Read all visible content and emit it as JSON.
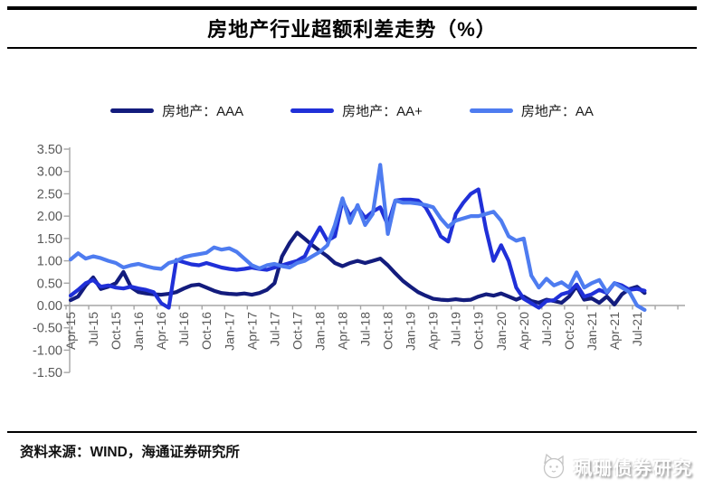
{
  "header": {
    "title": "房地产行业超额利差走势（%）"
  },
  "legend": [
    {
      "label": "房地产：AAA",
      "color": "#131c7d"
    },
    {
      "label": "房地产：AA+",
      "color": "#2030d8"
    },
    {
      "label": "房地产：AA",
      "color": "#4e7cf0"
    }
  ],
  "footer": {
    "source": "资料来源：WIND，海通证券研究所",
    "watermark": "珮珊债券研究"
  },
  "chart_data": {
    "type": "line",
    "title": "房地产行业超额利差走势（%）",
    "xlabel": "",
    "ylabel": "",
    "ylim": [
      -1.5,
      3.5
    ],
    "ytick_step": 0.5,
    "grid": false,
    "legend_position": "top",
    "axis_color": "#a6a6a6",
    "tick_label_color": "#595959",
    "y_tick_labels": [
      "3.50",
      "3.00",
      "2.50",
      "2.00",
      "1.50",
      "1.00",
      "0.50",
      "0.00",
      "-0.50",
      "-1.00",
      "-1.50"
    ],
    "x_tick_labels": [
      "Apr-15",
      "Jul-15",
      "Oct-15",
      "Jan-16",
      "Apr-16",
      "Jul-16",
      "Oct-16",
      "Jan-17",
      "Apr-17",
      "Jul-17",
      "Oct-17",
      "Jan-18",
      "Apr-18",
      "Jul-18",
      "Oct-18",
      "Jan-19",
      "Apr-19",
      "Jul-19",
      "Oct-19",
      "Jan-20",
      "Apr-20",
      "Jul-20",
      "Oct-20",
      "Jan-21",
      "Apr-21",
      "Jul-21"
    ],
    "x": [
      "Apr-15",
      "May-15",
      "Jun-15",
      "Jul-15",
      "Aug-15",
      "Sep-15",
      "Oct-15",
      "Nov-15",
      "Dec-15",
      "Jan-16",
      "Feb-16",
      "Mar-16",
      "Apr-16",
      "May-16",
      "Jun-16",
      "Jul-16",
      "Aug-16",
      "Sep-16",
      "Oct-16",
      "Nov-16",
      "Dec-16",
      "Jan-17",
      "Feb-17",
      "Mar-17",
      "Apr-17",
      "May-17",
      "Jun-17",
      "Jul-17",
      "Aug-17",
      "Sep-17",
      "Oct-17",
      "Nov-17",
      "Dec-17",
      "Jan-18",
      "Feb-18",
      "Mar-18",
      "Apr-18",
      "May-18",
      "Jun-18",
      "Jul-18",
      "Aug-18",
      "Sep-18",
      "Oct-18",
      "Nov-18",
      "Dec-18",
      "Jan-19",
      "Feb-19",
      "Mar-19",
      "Apr-19",
      "May-19",
      "Jun-19",
      "Jul-19",
      "Aug-19",
      "Sep-19",
      "Oct-19",
      "Nov-19",
      "Dec-19",
      "Jan-20",
      "Feb-20",
      "Mar-20",
      "Apr-20",
      "May-20",
      "Jun-20",
      "Jul-20",
      "Aug-20",
      "Sep-20",
      "Oct-20",
      "Nov-20",
      "Dec-20",
      "Jan-21",
      "Feb-21",
      "Mar-21",
      "Apr-21",
      "May-21",
      "Jun-21",
      "Jul-21",
      "Aug-21"
    ],
    "series": [
      {
        "name": "房地产：AAA",
        "color": "#131c7d",
        "values": [
          0.12,
          0.2,
          0.45,
          0.63,
          0.37,
          0.42,
          0.5,
          0.75,
          0.41,
          0.3,
          0.27,
          0.25,
          0.24,
          0.26,
          0.3,
          0.38,
          0.45,
          0.47,
          0.4,
          0.33,
          0.28,
          0.26,
          0.25,
          0.27,
          0.24,
          0.28,
          0.35,
          0.5,
          1.1,
          1.4,
          1.63,
          1.49,
          1.35,
          1.22,
          1.1,
          0.95,
          0.88,
          0.95,
          1.0,
          0.95,
          1.0,
          1.05,
          0.9,
          0.72,
          0.55,
          0.42,
          0.3,
          0.22,
          0.15,
          0.13,
          0.12,
          0.14,
          0.12,
          0.13,
          0.2,
          0.25,
          0.22,
          0.27,
          0.2,
          0.13,
          0.2,
          0.1,
          0.06,
          0.13,
          0.1,
          0.06,
          0.2,
          0.43,
          0.13,
          0.16,
          0.06,
          0.2,
          0.02,
          0.25,
          0.37,
          0.42,
          0.28
        ]
      },
      {
        "name": "房地产：AA+",
        "color": "#2030d8",
        "values": [
          0.22,
          0.35,
          0.5,
          0.57,
          0.42,
          0.45,
          0.4,
          0.38,
          0.42,
          0.38,
          0.35,
          0.3,
          0.05,
          -0.05,
          1.02,
          0.97,
          0.92,
          0.9,
          0.95,
          0.9,
          0.85,
          0.82,
          0.8,
          0.82,
          0.85,
          0.82,
          0.8,
          0.85,
          0.9,
          0.95,
          1.0,
          1.1,
          1.45,
          1.75,
          1.45,
          1.55,
          2.35,
          2.0,
          2.2,
          1.96,
          2.1,
          2.2,
          1.8,
          2.35,
          2.37,
          2.37,
          2.35,
          2.2,
          1.9,
          1.55,
          1.43,
          2.05,
          2.3,
          2.5,
          2.6,
          1.7,
          1.0,
          1.35,
          1.0,
          0.4,
          0.15,
          0.05,
          -0.05,
          0.1,
          0.12,
          0.25,
          0.3,
          0.47,
          0.2,
          0.25,
          0.35,
          0.28,
          0.5,
          0.45,
          0.35,
          0.37,
          0.33
        ]
      },
      {
        "name": "房地产：AA",
        "color": "#4e7cf0",
        "values": [
          1.03,
          1.17,
          1.05,
          1.1,
          1.06,
          1.0,
          0.95,
          0.85,
          0.9,
          0.93,
          0.88,
          0.84,
          0.82,
          0.95,
          1.0,
          1.08,
          1.12,
          1.15,
          1.18,
          1.3,
          1.25,
          1.28,
          1.2,
          1.05,
          0.9,
          0.83,
          0.9,
          0.93,
          0.88,
          0.85,
          0.95,
          1.0,
          1.1,
          1.2,
          1.35,
          1.8,
          2.4,
          1.85,
          2.25,
          1.8,
          2.05,
          3.15,
          1.6,
          2.35,
          2.3,
          2.3,
          2.28,
          2.25,
          2.2,
          1.95,
          1.76,
          1.9,
          1.95,
          2.0,
          2.0,
          2.05,
          2.1,
          1.9,
          1.55,
          1.45,
          1.5,
          0.67,
          0.4,
          0.6,
          0.45,
          0.52,
          0.4,
          0.74,
          0.4,
          0.5,
          0.57,
          0.3,
          0.5,
          0.4,
          0.3,
          0.0,
          -0.1
        ]
      }
    ]
  }
}
